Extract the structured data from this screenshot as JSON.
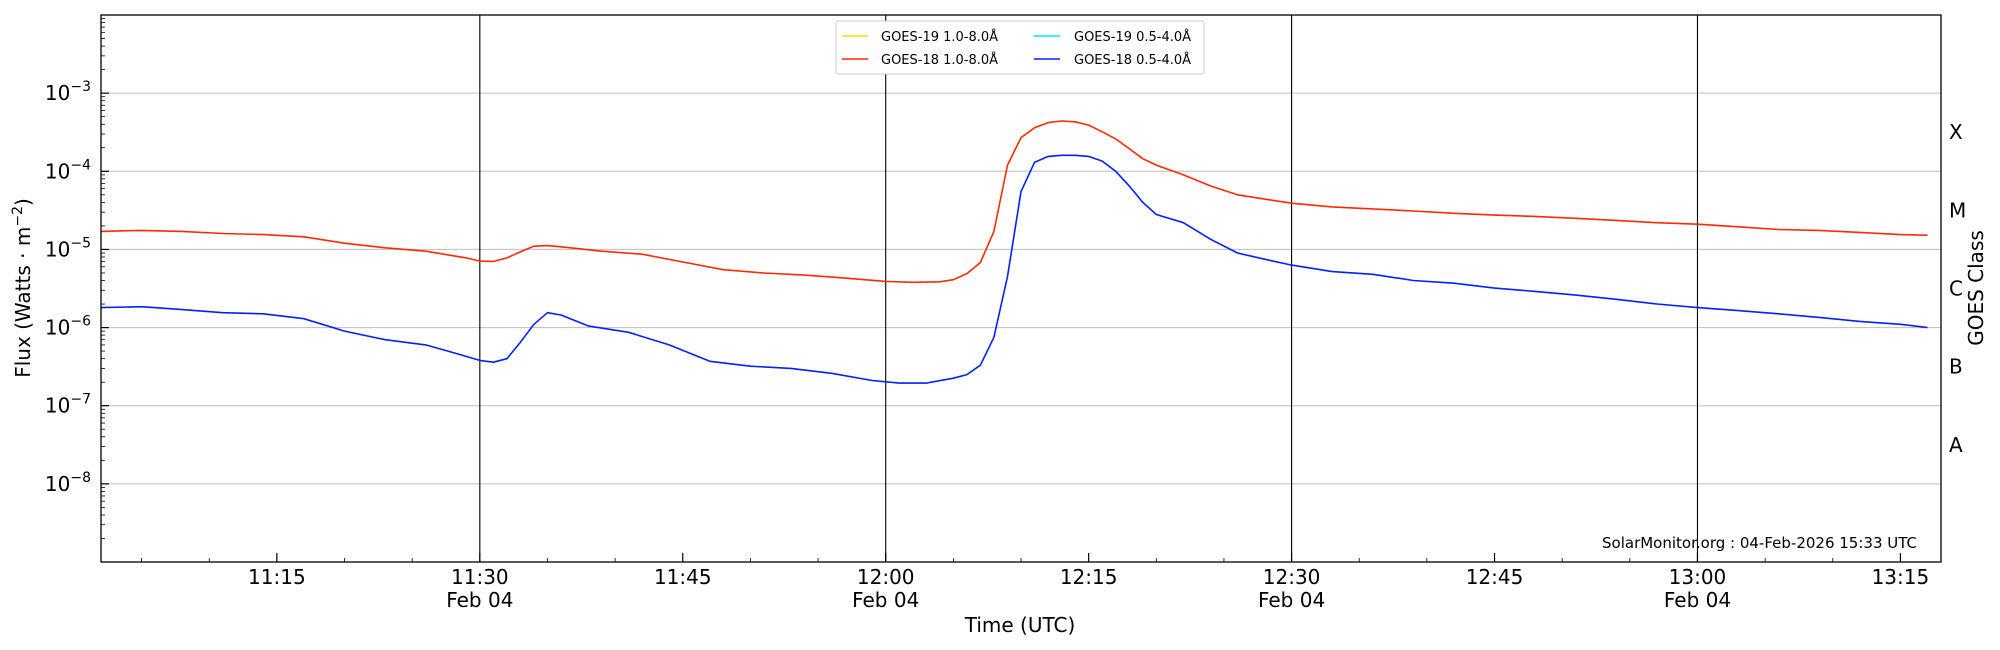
{
  "chart_data": {
    "type": "line",
    "title": "",
    "xlabel": "Time (UTC)",
    "ylabel_main": "Flux (Watts · m",
    "ylabel_sup": "−2",
    "ylabel_close": ")",
    "y2label": "GOES Class",
    "yscale": "log",
    "ylim": [
      1e-09,
      0.01
    ],
    "xlim": [
      "11:02",
      "13:18"
    ],
    "grid": "horizontal",
    "legend_position": "top-center",
    "credit": "SolarMonitor.org : 04-Feb-2026 15:33 UTC",
    "x_ticks": [
      {
        "time": "11:15",
        "label": "11:15",
        "sub": ""
      },
      {
        "time": "11:30",
        "label": "11:30",
        "sub": "Feb 04"
      },
      {
        "time": "11:45",
        "label": "11:45",
        "sub": ""
      },
      {
        "time": "12:00",
        "label": "12:00",
        "sub": "Feb 04"
      },
      {
        "time": "12:15",
        "label": "12:15",
        "sub": ""
      },
      {
        "time": "12:30",
        "label": "12:30",
        "sub": "Feb 04"
      },
      {
        "time": "12:45",
        "label": "12:45",
        "sub": ""
      },
      {
        "time": "13:00",
        "label": "13:00",
        "sub": "Feb 04"
      },
      {
        "time": "13:15",
        "label": "13:15",
        "sub": ""
      }
    ],
    "y_ticks": [
      {
        "exp": -8,
        "base": "10",
        "sup": "−8"
      },
      {
        "exp": -7,
        "base": "10",
        "sup": "−7"
      },
      {
        "exp": -6,
        "base": "10",
        "sup": "−6"
      },
      {
        "exp": -5,
        "base": "10",
        "sup": "−5"
      },
      {
        "exp": -4,
        "base": "10",
        "sup": "−4"
      },
      {
        "exp": -3,
        "base": "10",
        "sup": "−3"
      }
    ],
    "classes": [
      {
        "label": "A",
        "exp": -7.5
      },
      {
        "label": "B",
        "exp": -6.5
      },
      {
        "label": "C",
        "exp": -5.5
      },
      {
        "label": "M",
        "exp": -4.5
      },
      {
        "label": "X",
        "exp": -3.5
      }
    ],
    "vlines": [
      "11:30",
      "12:00",
      "12:30",
      "13:00"
    ],
    "series": [
      {
        "name": "GOES-19 1.0-8.0Å",
        "color": "#ffd700",
        "times": [],
        "values": []
      },
      {
        "name": "GOES-19 0.5-4.0Å",
        "color": "#00e5ff",
        "times": [],
        "values": []
      },
      {
        "name": "GOES-18 1.0-8.0Å",
        "color": "#ff2a00",
        "times": [
          "11:02",
          "11:05",
          "11:08",
          "11:11",
          "11:14",
          "11:17",
          "11:20",
          "11:23",
          "11:26",
          "11:29",
          "11:30",
          "11:31",
          "11:32",
          "11:33",
          "11:34",
          "11:35",
          "11:36",
          "11:39",
          "11:42",
          "11:45",
          "11:48",
          "11:51",
          "11:54",
          "11:57",
          "12:00",
          "12:02",
          "12:04",
          "12:05",
          "12:06",
          "12:07",
          "12:08",
          "12:09",
          "12:10",
          "12:11",
          "12:12",
          "12:13",
          "12:14",
          "12:15",
          "12:16",
          "12:17",
          "12:18",
          "12:19",
          "12:20",
          "12:22",
          "12:24",
          "12:26",
          "12:28",
          "12:30",
          "12:33",
          "12:36",
          "12:39",
          "12:42",
          "12:45",
          "12:48",
          "12:51",
          "12:54",
          "12:57",
          "13:00",
          "13:03",
          "13:06",
          "13:09",
          "13:12",
          "13:15",
          "13:17"
        ],
        "values": [
          1.7e-05,
          1.75e-05,
          1.7e-05,
          1.6e-05,
          1.55e-05,
          1.45e-05,
          1.2e-05,
          1.05e-05,
          9.5e-06,
          7.8e-06,
          7.1e-06,
          7e-06,
          7.8e-06,
          9.3e-06,
          1.1e-05,
          1.12e-05,
          1.08e-05,
          9.5e-06,
          8.7e-06,
          6.9e-06,
          5.5e-06,
          5e-06,
          4.7e-06,
          4.3e-06,
          3.9e-06,
          3.8e-06,
          3.85e-06,
          4.1e-06,
          4.9e-06,
          6.8e-06,
          1.7e-05,
          0.00012,
          0.00027,
          0.00036,
          0.00042,
          0.00044,
          0.00043,
          0.00039,
          0.00032,
          0.00026,
          0.000195,
          0.000145,
          0.00012,
          9e-05,
          6.5e-05,
          5e-05,
          4.4e-05,
          3.9e-05,
          3.5e-05,
          3.3e-05,
          3.1e-05,
          2.9e-05,
          2.75e-05,
          2.65e-05,
          2.5e-05,
          2.35e-05,
          2.2e-05,
          2.1e-05,
          1.95e-05,
          1.8e-05,
          1.75e-05,
          1.65e-05,
          1.55e-05,
          1.52e-05
        ]
      },
      {
        "name": "GOES-18 0.5-4.0Å",
        "color": "#0022ff",
        "times": [
          "11:02",
          "11:05",
          "11:08",
          "11:11",
          "11:14",
          "11:17",
          "11:20",
          "11:23",
          "11:26",
          "11:28",
          "11:30",
          "11:31",
          "11:32",
          "11:33",
          "11:34",
          "11:35",
          "11:36",
          "11:38",
          "11:41",
          "11:44",
          "11:47",
          "11:50",
          "11:53",
          "11:56",
          "11:59",
          "12:01",
          "12:03",
          "12:05",
          "12:06",
          "12:07",
          "12:08",
          "12:09",
          "12:10",
          "12:11",
          "12:12",
          "12:13",
          "12:14",
          "12:15",
          "12:16",
          "12:17",
          "12:18",
          "12:19",
          "12:20",
          "12:22",
          "12:24",
          "12:26",
          "12:28",
          "12:30",
          "12:33",
          "12:36",
          "12:39",
          "12:42",
          "12:45",
          "12:48",
          "12:51",
          "12:54",
          "12:57",
          "13:00",
          "13:03",
          "13:06",
          "13:09",
          "13:12",
          "13:15",
          "13:17"
        ],
        "values": [
          1.8e-06,
          1.85e-06,
          1.7e-06,
          1.55e-06,
          1.5e-06,
          1.3e-06,
          9e-07,
          7e-07,
          6e-07,
          4.8e-07,
          3.8e-07,
          3.6e-07,
          4e-07,
          6.5e-07,
          1.1e-06,
          1.55e-06,
          1.45e-06,
          1.05e-06,
          8.7e-07,
          6e-07,
          3.7e-07,
          3.2e-07,
          3e-07,
          2.6e-07,
          2.1e-07,
          1.95e-07,
          1.95e-07,
          2.25e-07,
          2.5e-07,
          3.3e-07,
          7.5e-07,
          4.5e-06,
          5.5e-05,
          0.00013,
          0.000155,
          0.00016,
          0.00016,
          0.000155,
          0.000135,
          0.0001,
          6.5e-05,
          4e-05,
          2.8e-05,
          2.2e-05,
          1.35e-05,
          9e-06,
          7.5e-06,
          6.3e-06,
          5.2e-06,
          4.8e-06,
          4e-06,
          3.7e-06,
          3.2e-06,
          2.9e-06,
          2.6e-06,
          2.3e-06,
          2e-06,
          1.8e-06,
          1.65e-06,
          1.5e-06,
          1.35e-06,
          1.2e-06,
          1.1e-06,
          1e-06
        ]
      }
    ]
  }
}
